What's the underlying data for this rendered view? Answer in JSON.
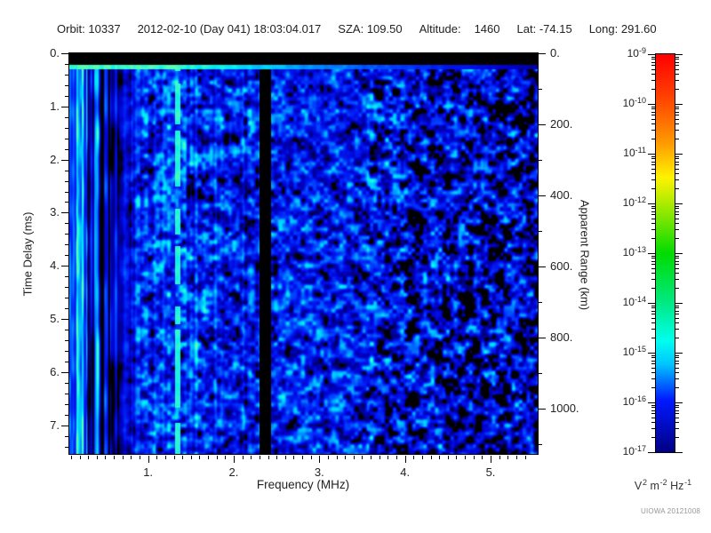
{
  "header": {
    "orbit_label": "Orbit:",
    "orbit": "10337",
    "datetime": "2012-02-10 (Day 041) 18:03:04.017",
    "sza_label": "SZA:",
    "sza": "109.50",
    "altitude_label": "Altitude:",
    "altitude": "1460",
    "lat_label": "Lat:",
    "lat": "-74.15",
    "long_label": "Long:",
    "long": "291.60"
  },
  "footer": {
    "watermark": "UIOWA 20121008"
  },
  "chart_data": {
    "type": "heatmap",
    "description": "Radar sounder ionogram: spectral density vs frequency and time delay",
    "x_axis": {
      "label": "Frequency (MHz)",
      "min": 0.08,
      "max": 5.55,
      "major_ticks": [
        1,
        2,
        3,
        4,
        5
      ],
      "major_tick_labels": [
        "1.",
        "2.",
        "3.",
        "4.",
        "5."
      ],
      "minor_tick_step": 0.1
    },
    "y_axis": {
      "label": "Time Delay (ms)",
      "min": 0,
      "max": 7.54,
      "direction": "down",
      "major_ticks": [
        0,
        1,
        2,
        3,
        4,
        5,
        6,
        7
      ],
      "major_tick_labels": [
        "0.",
        "1.",
        "2.",
        "3.",
        "4.",
        "5.",
        "6.",
        "7."
      ],
      "minor_tick_step": 0.2
    },
    "y2_axis": {
      "label": "Apparent Range (km)",
      "min": 0,
      "max": 1128,
      "major_ticks": [
        0,
        200,
        400,
        600,
        800,
        1000
      ],
      "major_tick_labels": [
        "0.",
        "200.",
        "400.",
        "600.",
        "800.",
        "1000."
      ],
      "minor_tick_step": 100
    },
    "colorbar": {
      "scale": "log",
      "max": "1e-9",
      "min": "1e-17",
      "decade_exponents": [
        -9,
        -10,
        -11,
        -12,
        -13,
        -14,
        -15,
        -16,
        -17
      ],
      "unit_parts": [
        {
          "base": "V",
          "sup": "2"
        },
        {
          "base": "m",
          "sup": "-2"
        },
        {
          "base": "Hz",
          "sup": "-1"
        }
      ],
      "gradient": [
        {
          "pos": 0.0,
          "color": "#ff0000"
        },
        {
          "pos": 0.1,
          "color": "#ff3c00"
        },
        {
          "pos": 0.22,
          "color": "#ff9700"
        },
        {
          "pos": 0.31,
          "color": "#fff300"
        },
        {
          "pos": 0.41,
          "color": "#7fe600"
        },
        {
          "pos": 0.5,
          "color": "#00dc00"
        },
        {
          "pos": 0.62,
          "color": "#00e87e"
        },
        {
          "pos": 0.72,
          "color": "#00ffee"
        },
        {
          "pos": 0.78,
          "color": "#00c3ff"
        },
        {
          "pos": 0.87,
          "color": "#0018ff"
        },
        {
          "pos": 1.0,
          "color": "#000082"
        }
      ]
    },
    "colormap": [
      {
        "v": 0.0,
        "c": "#000000"
      },
      {
        "v": 0.13,
        "c": "#000000"
      },
      {
        "v": 0.2,
        "c": "#000070"
      },
      {
        "v": 0.32,
        "c": "#0000c8"
      },
      {
        "v": 0.45,
        "c": "#0018f0"
      },
      {
        "v": 0.58,
        "c": "#0048ff"
      },
      {
        "v": 0.7,
        "c": "#0090ff"
      },
      {
        "v": 0.8,
        "c": "#00c8ff"
      },
      {
        "v": 0.9,
        "c": "#00f0f0"
      },
      {
        "v": 1.0,
        "c": "#55ffb4"
      }
    ],
    "features": {
      "seed": 1337,
      "blackout_top_ms": 0.205,
      "surface_line": {
        "t_end_ms": 0.29,
        "full_bright_below_mhz": 1.3,
        "fade_rate_per_mhz": 0.17
      },
      "bright_line_mhz": {
        "f_start": 1.315,
        "f_end": 1.372,
        "value": 0.88,
        "dash_scale": 14,
        "dash_gap": 0.3
      },
      "black_band_mhz": {
        "f_start": 2.3,
        "f_end": 2.43
      },
      "dark_columns_mhz": {
        "f_start": 0.29,
        "f_end": 0.55
      },
      "bright_left_mhz": 0.27,
      "streak_zone_mhz": 0.95,
      "base_levels": [
        {
          "f_max": 2.2,
          "base": 0.5
        },
        {
          "f_max": 3.4,
          "base": 0.46
        },
        {
          "f_max": 4.0,
          "base": 0.42
        },
        {
          "f_max": 99,
          "base": 0.36
        }
      ],
      "noise_amp": 1.05,
      "noise_amp_hf": 1.3,
      "hf_start_mhz": 3.55
    }
  }
}
